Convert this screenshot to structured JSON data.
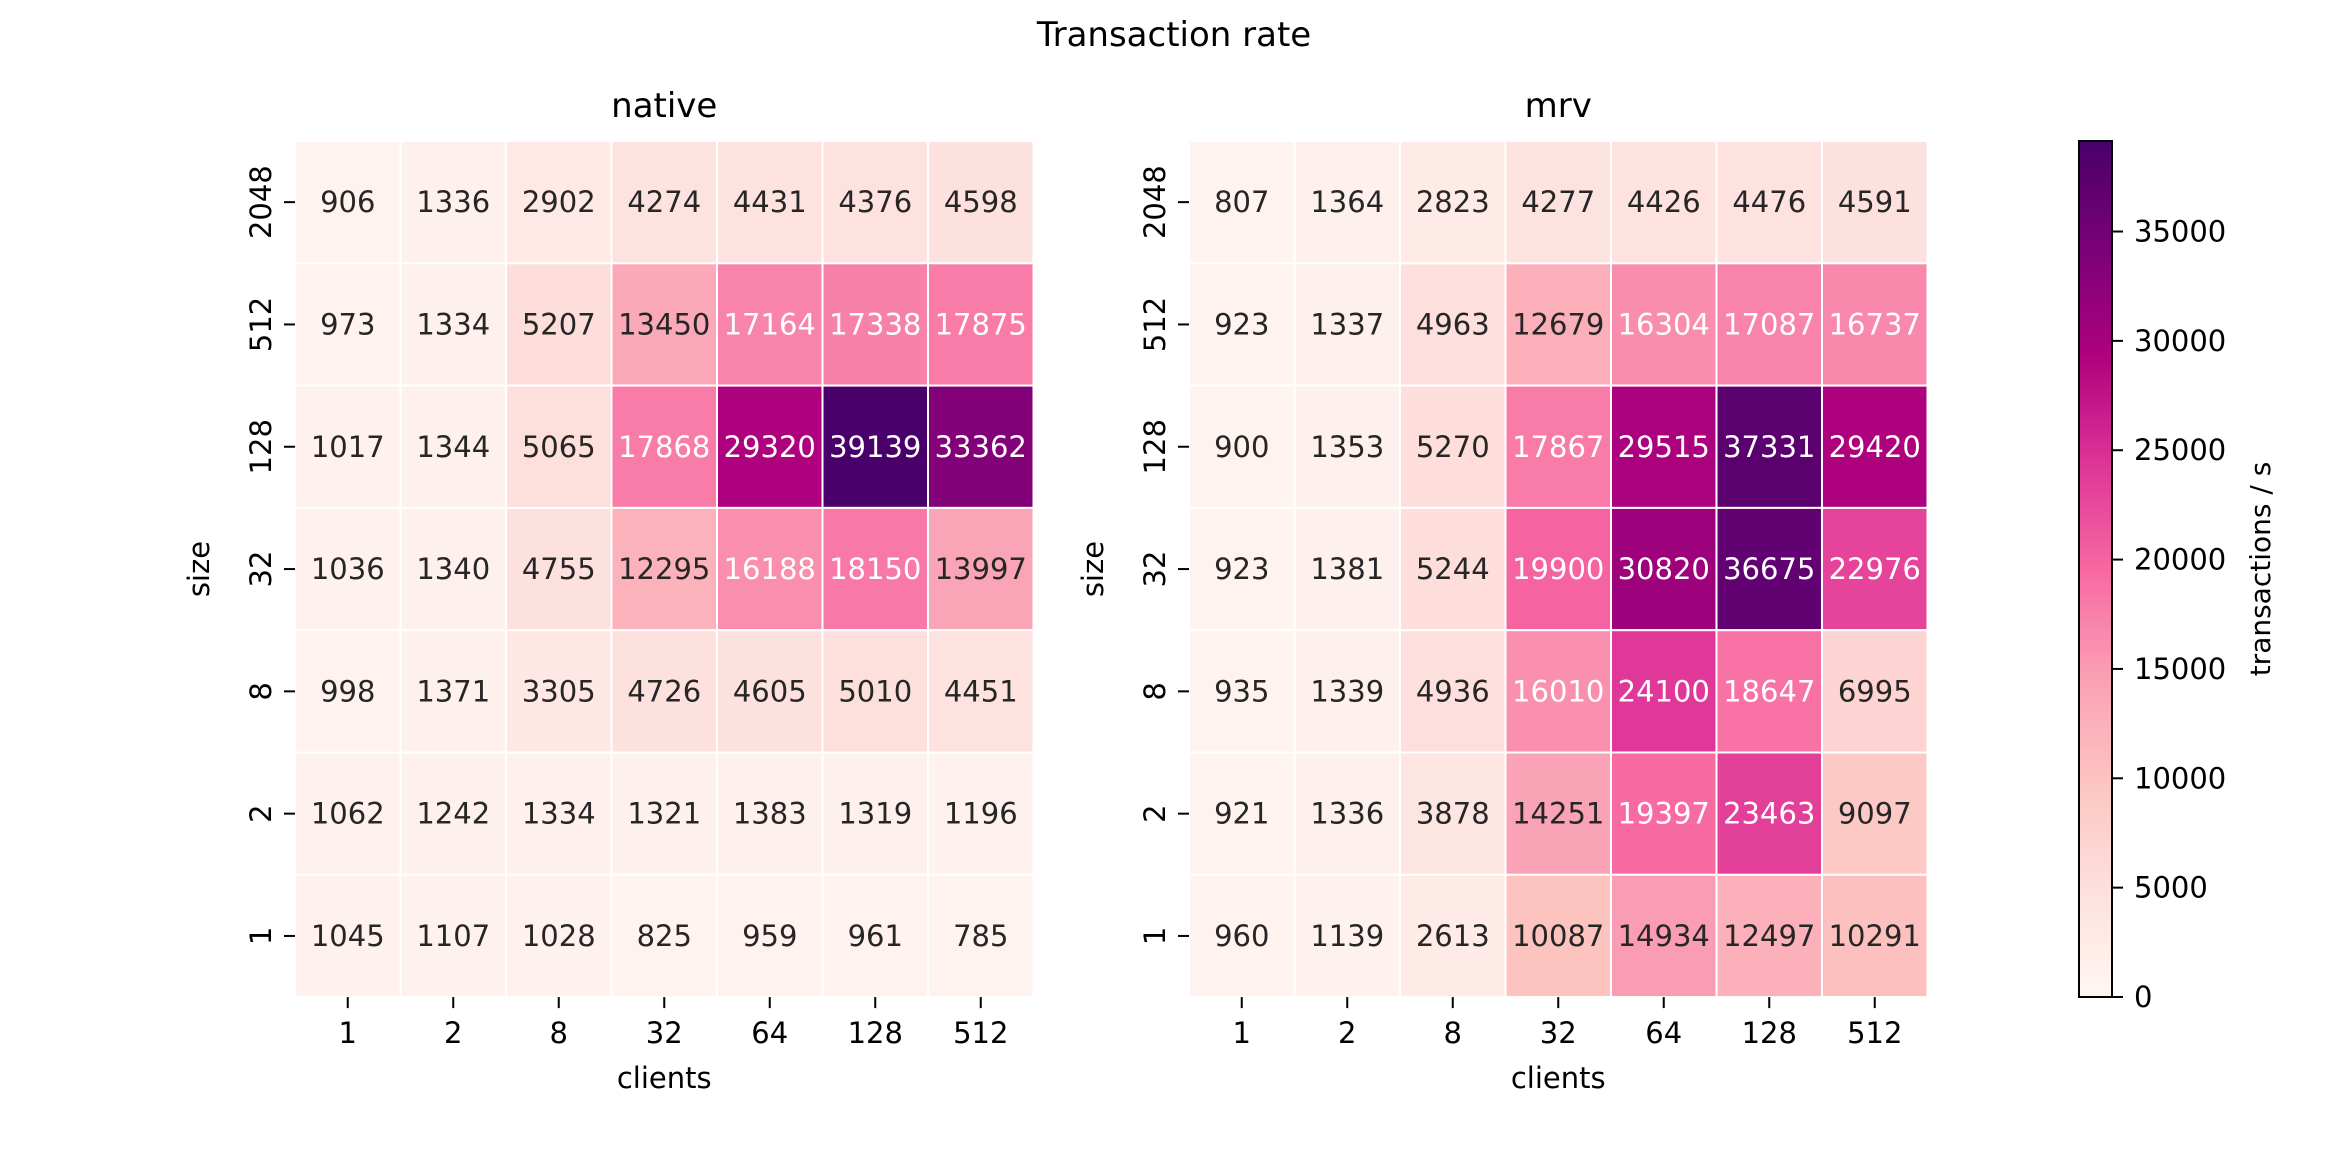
{
  "figure": {
    "title": "Transaction rate"
  },
  "colorbar": {
    "label": "transactions / s",
    "ticks": [
      "0",
      "5000",
      "10000",
      "15000",
      "20000",
      "25000",
      "30000",
      "35000"
    ]
  },
  "chart_data": [
    {
      "type": "heatmap",
      "title": "native",
      "xlabel": "clients",
      "ylabel": "size",
      "x_categories": [
        "1",
        "2",
        "8",
        "32",
        "64",
        "128",
        "512"
      ],
      "y_categories": [
        "2048",
        "512",
        "128",
        "32",
        "8",
        "2",
        "1"
      ],
      "values": [
        [
          906,
          1336,
          2902,
          4274,
          4431,
          4376,
          4598
        ],
        [
          973,
          1334,
          5207,
          13450,
          17164,
          17338,
          17875
        ],
        [
          1017,
          1344,
          5065,
          17868,
          29320,
          39139,
          33362
        ],
        [
          1036,
          1340,
          4755,
          12295,
          16188,
          18150,
          13997
        ],
        [
          998,
          1371,
          3305,
          4726,
          4605,
          5010,
          4451
        ],
        [
          1062,
          1242,
          1334,
          1321,
          1383,
          1319,
          1196
        ],
        [
          1045,
          1107,
          1028,
          825,
          959,
          961,
          785
        ]
      ],
      "value_range": [
        0,
        39139
      ],
      "colormap": "RdPu"
    },
    {
      "type": "heatmap",
      "title": "mrv",
      "xlabel": "clients",
      "ylabel": "size",
      "x_categories": [
        "1",
        "2",
        "8",
        "32",
        "64",
        "128",
        "512"
      ],
      "y_categories": [
        "2048",
        "512",
        "128",
        "32",
        "8",
        "2",
        "1"
      ],
      "values": [
        [
          807,
          1364,
          2823,
          4277,
          4426,
          4476,
          4591
        ],
        [
          923,
          1337,
          4963,
          12679,
          16304,
          17087,
          16737
        ],
        [
          900,
          1353,
          5270,
          17867,
          29515,
          37331,
          29420
        ],
        [
          923,
          1381,
          5244,
          19900,
          30820,
          36675,
          22976
        ],
        [
          935,
          1339,
          4936,
          16010,
          24100,
          18647,
          6995
        ],
        [
          921,
          1336,
          3878,
          14251,
          19397,
          23463,
          9097
        ],
        [
          960,
          1139,
          2613,
          10087,
          14934,
          12497,
          10291
        ]
      ],
      "value_range": [
        0,
        39139
      ],
      "colormap": "RdPu"
    }
  ]
}
